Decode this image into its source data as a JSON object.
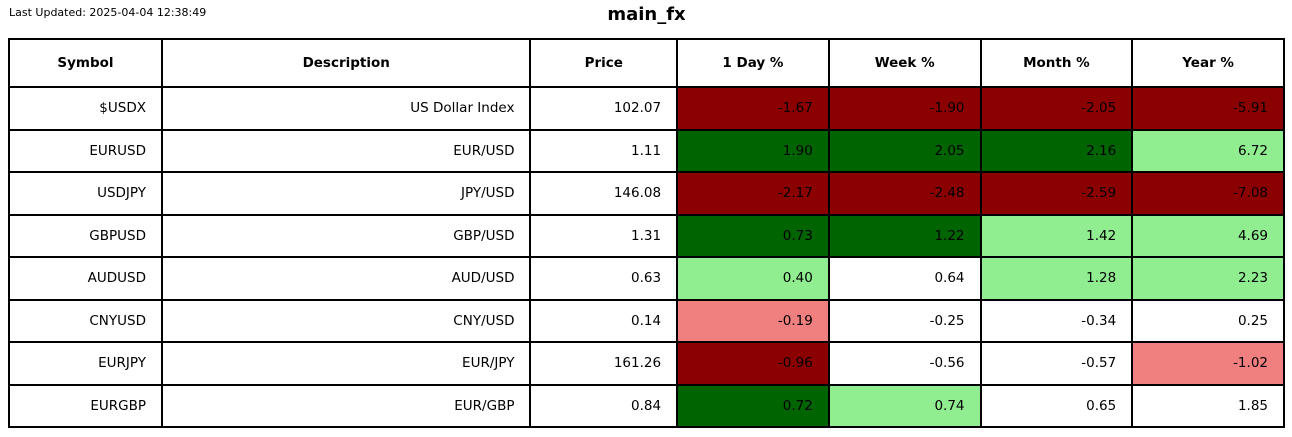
{
  "meta": {
    "last_updated": "Last Updated: 2025-04-04 12:38:49"
  },
  "colors": {
    "dark_red": "#8B0000",
    "dark_green": "#006400",
    "light_green": "#90EE90",
    "light_red": "#F08080",
    "white": "#FFFFFF"
  },
  "chart_data": {
    "type": "table",
    "title": "main_fx",
    "columns": [
      "Symbol",
      "Description",
      "Price",
      "1 Day %",
      "Week %",
      "Month %",
      "Year %"
    ],
    "rows": [
      {
        "symbol": "$USDX",
        "description": "US Dollar Index",
        "price": "102.07",
        "pct": [
          {
            "value": "-1.67",
            "bg": "dark_red"
          },
          {
            "value": "-1.90",
            "bg": "dark_red"
          },
          {
            "value": "-2.05",
            "bg": "dark_red"
          },
          {
            "value": "-5.91",
            "bg": "dark_red"
          }
        ]
      },
      {
        "symbol": "EURUSD",
        "description": "EUR/USD",
        "price": "1.11",
        "pct": [
          {
            "value": "1.90",
            "bg": "dark_green"
          },
          {
            "value": "2.05",
            "bg": "dark_green"
          },
          {
            "value": "2.16",
            "bg": "dark_green"
          },
          {
            "value": "6.72",
            "bg": "light_green"
          }
        ]
      },
      {
        "symbol": "USDJPY",
        "description": "JPY/USD",
        "price": "146.08",
        "pct": [
          {
            "value": "-2.17",
            "bg": "dark_red"
          },
          {
            "value": "-2.48",
            "bg": "dark_red"
          },
          {
            "value": "-2.59",
            "bg": "dark_red"
          },
          {
            "value": "-7.08",
            "bg": "dark_red"
          }
        ]
      },
      {
        "symbol": "GBPUSD",
        "description": "GBP/USD",
        "price": "1.31",
        "pct": [
          {
            "value": "0.73",
            "bg": "dark_green"
          },
          {
            "value": "1.22",
            "bg": "dark_green"
          },
          {
            "value": "1.42",
            "bg": "light_green"
          },
          {
            "value": "4.69",
            "bg": "light_green"
          }
        ]
      },
      {
        "symbol": "AUDUSD",
        "description": "AUD/USD",
        "price": "0.63",
        "pct": [
          {
            "value": "0.40",
            "bg": "light_green"
          },
          {
            "value": "0.64",
            "bg": "white"
          },
          {
            "value": "1.28",
            "bg": "light_green"
          },
          {
            "value": "2.23",
            "bg": "light_green"
          }
        ]
      },
      {
        "symbol": "CNYUSD",
        "description": "CNY/USD",
        "price": "0.14",
        "pct": [
          {
            "value": "-0.19",
            "bg": "light_red"
          },
          {
            "value": "-0.25",
            "bg": "white"
          },
          {
            "value": "-0.34",
            "bg": "white"
          },
          {
            "value": "0.25",
            "bg": "white"
          }
        ]
      },
      {
        "symbol": "EURJPY",
        "description": "EUR/JPY",
        "price": "161.26",
        "pct": [
          {
            "value": "-0.96",
            "bg": "dark_red"
          },
          {
            "value": "-0.56",
            "bg": "white"
          },
          {
            "value": "-0.57",
            "bg": "white"
          },
          {
            "value": "-1.02",
            "bg": "light_red"
          }
        ]
      },
      {
        "symbol": "EURGBP",
        "description": "EUR/GBP",
        "price": "0.84",
        "pct": [
          {
            "value": "0.72",
            "bg": "dark_green"
          },
          {
            "value": "0.74",
            "bg": "light_green"
          },
          {
            "value": "0.65",
            "bg": "white"
          },
          {
            "value": "1.85",
            "bg": "white"
          }
        ]
      }
    ]
  }
}
